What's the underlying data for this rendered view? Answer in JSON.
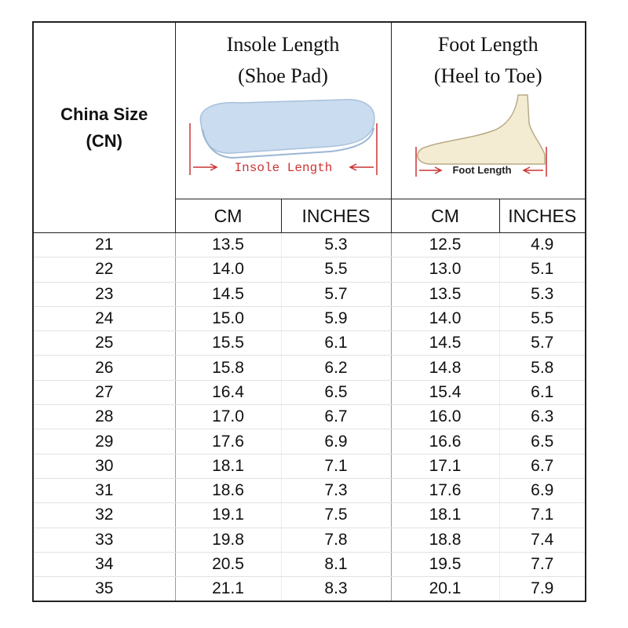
{
  "header": {
    "size_label": [
      "China Size",
      "(CN)"
    ],
    "insole": {
      "title": [
        "Insole Length",
        "(Shoe Pad)"
      ],
      "image_label": "Insole Length"
    },
    "foot": {
      "title": [
        "Foot Length",
        "(Heel to Toe)"
      ],
      "image_label": "Foot Length"
    },
    "columns": [
      "CM",
      "INCHES",
      "CM",
      "INCHES"
    ]
  },
  "table": {
    "rows": [
      [
        "21",
        "13.5",
        "5.3",
        "12.5",
        "4.9"
      ],
      [
        "22",
        "14.0",
        "5.5",
        "13.0",
        "5.1"
      ],
      [
        "23",
        "14.5",
        "5.7",
        "13.5",
        "5.3"
      ],
      [
        "24",
        "15.0",
        "5.9",
        "14.0",
        "5.5"
      ],
      [
        "25",
        "15.5",
        "6.1",
        "14.5",
        "5.7"
      ],
      [
        "26",
        "15.8",
        "6.2",
        "14.8",
        "5.8"
      ],
      [
        "27",
        "16.4",
        "6.5",
        "15.4",
        "6.1"
      ],
      [
        "28",
        "17.0",
        "6.7",
        "16.0",
        "6.3"
      ],
      [
        "29",
        "17.6",
        "6.9",
        "16.6",
        "6.5"
      ],
      [
        "30",
        "18.1",
        "7.1",
        "17.1",
        "6.7"
      ],
      [
        "31",
        "18.6",
        "7.3",
        "17.6",
        "6.9"
      ],
      [
        "32",
        "19.1",
        "7.5",
        "18.1",
        "7.1"
      ],
      [
        "33",
        "19.8",
        "7.8",
        "18.8",
        "7.4"
      ],
      [
        "34",
        "20.5",
        "8.1",
        "19.5",
        "7.7"
      ],
      [
        "35",
        "21.1",
        "8.3",
        "20.1",
        "7.9"
      ]
    ]
  }
}
